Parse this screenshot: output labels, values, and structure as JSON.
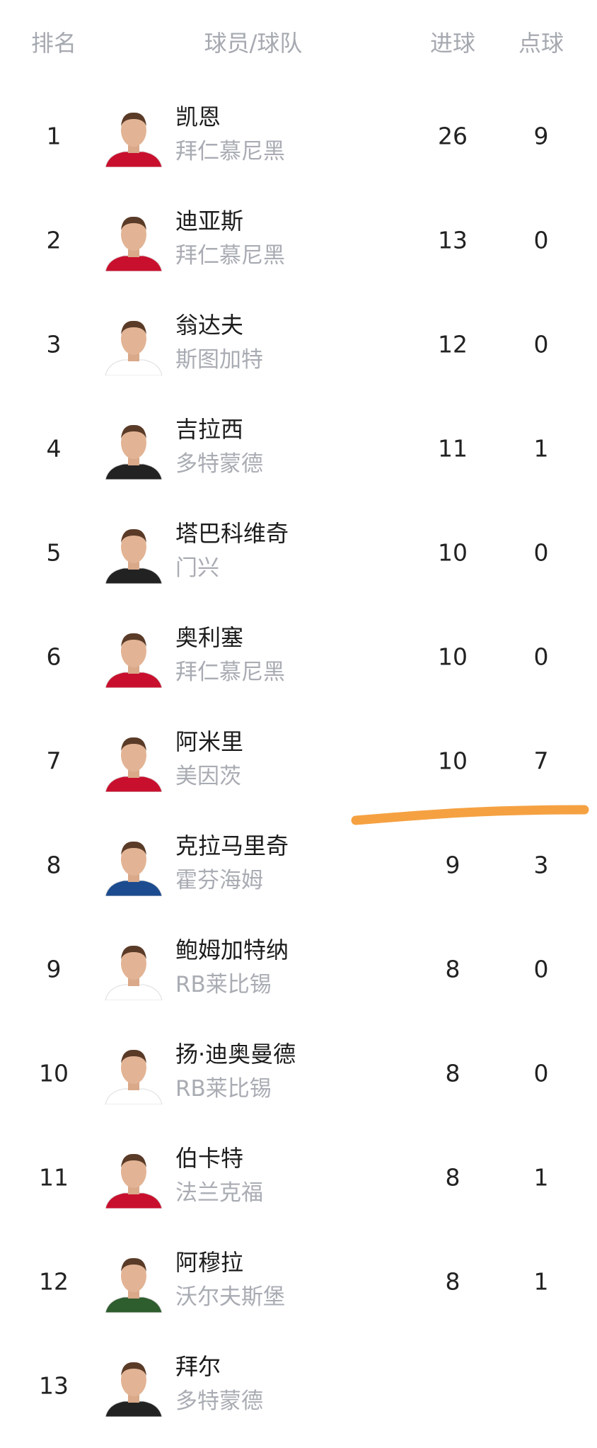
{
  "header": {
    "rank": "排名",
    "player_team": "球员/球队",
    "goals": "进球",
    "penalties": "点球"
  },
  "annotation_color": "#f5a142",
  "rows": [
    {
      "rank": "1",
      "name": "凯恩",
      "team": "拜仁慕尼黑",
      "goals": "26",
      "penalties": "9",
      "kit": "#c8102e"
    },
    {
      "rank": "2",
      "name": "迪亚斯",
      "team": "拜仁慕尼黑",
      "goals": "13",
      "penalties": "0",
      "kit": "#c8102e"
    },
    {
      "rank": "3",
      "name": "翁达夫",
      "team": "斯图加特",
      "goals": "12",
      "penalties": "0",
      "kit": "#ffffff"
    },
    {
      "rank": "4",
      "name": "吉拉西",
      "team": "多特蒙德",
      "goals": "11",
      "penalties": "1",
      "kit": "#222222"
    },
    {
      "rank": "5",
      "name": "塔巴科维奇",
      "team": "门兴",
      "goals": "10",
      "penalties": "0",
      "kit": "#222222"
    },
    {
      "rank": "6",
      "name": "奥利塞",
      "team": "拜仁慕尼黑",
      "goals": "10",
      "penalties": "0",
      "kit": "#c8102e"
    },
    {
      "rank": "7",
      "name": "阿米里",
      "team": "美因茨",
      "goals": "10",
      "penalties": "7",
      "kit": "#c8102e"
    },
    {
      "rank": "8",
      "name": "克拉马里奇",
      "team": "霍芬海姆",
      "goals": "9",
      "penalties": "3",
      "kit": "#1c4b8f"
    },
    {
      "rank": "9",
      "name": "鲍姆加特纳",
      "team": "RB莱比锡",
      "goals": "8",
      "penalties": "0",
      "kit": "#ffffff"
    },
    {
      "rank": "10",
      "name": "扬·迪奥曼德",
      "team": "RB莱比锡",
      "goals": "8",
      "penalties": "0",
      "kit": "#ffffff"
    },
    {
      "rank": "11",
      "name": "伯卡特",
      "team": "法兰克福",
      "goals": "8",
      "penalties": "1",
      "kit": "#c8102e"
    },
    {
      "rank": "12",
      "name": "阿穆拉",
      "team": "沃尔夫斯堡",
      "goals": "8",
      "penalties": "1",
      "kit": "#2e5d2e"
    },
    {
      "rank": "13",
      "name": "拜尔",
      "team": "多特蒙德",
      "goals": "",
      "penalties": "",
      "kit": "#222222"
    }
  ]
}
